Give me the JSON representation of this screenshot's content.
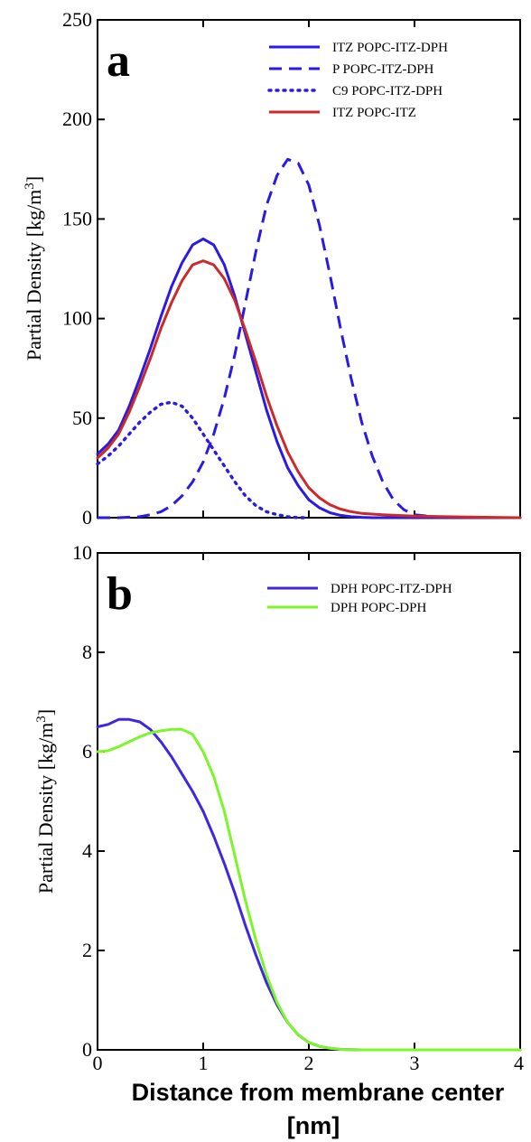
{
  "chart_data": [
    {
      "type": "line",
      "panel_label": "a",
      "ylabel_main": "Partial Density [kg/m",
      "ylabel_sup": "3",
      "ylabel_close": "]",
      "xlim": [
        0,
        4
      ],
      "ylim": [
        0,
        250
      ],
      "xticks": [
        0,
        1,
        2,
        3,
        4
      ],
      "yticks": [
        0,
        50,
        100,
        150,
        200,
        250
      ],
      "grid": false,
      "legend_position": "top-right",
      "series": [
        {
          "name": "ITZ POPC-ITZ-DPH",
          "color": "#2b1be0",
          "dash": "solid",
          "x": [
            0,
            0.1,
            0.2,
            0.3,
            0.4,
            0.5,
            0.6,
            0.7,
            0.8,
            0.9,
            1.0,
            1.1,
            1.2,
            1.3,
            1.4,
            1.5,
            1.6,
            1.7,
            1.8,
            1.9,
            2.0,
            2.1,
            2.2,
            2.3,
            2.4,
            2.5,
            2.6,
            2.8,
            3.0,
            3.5,
            4.0
          ],
          "y": [
            32,
            37,
            44,
            56,
            70,
            85,
            101,
            116,
            128,
            137,
            140,
            137,
            127,
            111,
            92,
            73,
            54,
            38,
            25,
            16,
            9,
            5,
            2.5,
            1.2,
            0.5,
            0.2,
            0,
            0,
            0,
            0,
            0
          ]
        },
        {
          "name": "P POPC-ITZ-DPH",
          "color": "#2b1be0",
          "dash": "dashed",
          "x": [
            0,
            0.2,
            0.4,
            0.5,
            0.6,
            0.7,
            0.8,
            0.9,
            1.0,
            1.1,
            1.2,
            1.3,
            1.4,
            1.5,
            1.6,
            1.7,
            1.8,
            1.9,
            2.0,
            2.1,
            2.2,
            2.3,
            2.4,
            2.5,
            2.6,
            2.7,
            2.8,
            2.9,
            3.0,
            3.2,
            3.5,
            4.0
          ],
          "y": [
            0,
            0,
            0.5,
            1.5,
            3,
            6,
            11,
            18,
            28,
            42,
            60,
            82,
            108,
            134,
            157,
            172,
            180,
            178,
            167,
            147,
            122,
            95,
            70,
            48,
            31,
            18,
            9,
            4,
            1.5,
            0.3,
            0,
            0
          ]
        },
        {
          "name": "C9 POPC-ITZ-DPH",
          "color": "#2b1be0",
          "dash": "dotted",
          "x": [
            0,
            0.1,
            0.2,
            0.3,
            0.4,
            0.5,
            0.6,
            0.7,
            0.8,
            0.9,
            1.0,
            1.1,
            1.2,
            1.3,
            1.4,
            1.5,
            1.6,
            1.7,
            1.8,
            1.9,
            2.0
          ],
          "y": [
            27,
            31,
            36,
            42,
            48,
            53,
            57,
            58,
            56,
            50,
            42,
            34,
            26,
            18,
            11,
            6,
            3,
            1.5,
            0.5,
            0,
            0
          ]
        },
        {
          "name": "ITZ POPC-ITZ",
          "color": "#cc2a2a",
          "dash": "solid",
          "x": [
            0,
            0.1,
            0.2,
            0.3,
            0.4,
            0.5,
            0.6,
            0.7,
            0.8,
            0.9,
            1.0,
            1.1,
            1.2,
            1.3,
            1.4,
            1.5,
            1.6,
            1.7,
            1.8,
            1.9,
            2.0,
            2.1,
            2.2,
            2.3,
            2.4,
            2.5,
            2.7,
            3.0,
            3.5,
            4.0
          ],
          "y": [
            30,
            35,
            42,
            53,
            66,
            80,
            95,
            108,
            119,
            127,
            129,
            127,
            120,
            109,
            94,
            78,
            61,
            46,
            33,
            23,
            15,
            10,
            6.5,
            4.3,
            3,
            2.2,
            1.5,
            0.8,
            0.3,
            0
          ]
        }
      ]
    },
    {
      "type": "line",
      "panel_label": "b",
      "ylabel_main": "Partial Density [kg/m",
      "ylabel_sup": "3",
      "ylabel_close": "]",
      "xlabel": "Distance from membrane center",
      "xlabel_line2": "[nm]",
      "xlim": [
        0,
        4
      ],
      "ylim": [
        0,
        10
      ],
      "xticks": [
        0,
        1,
        2,
        3,
        4
      ],
      "yticks": [
        0,
        2,
        4,
        6,
        8,
        10
      ],
      "grid": false,
      "legend_position": "top-right",
      "series": [
        {
          "name": "DPH POPC-ITZ-DPH",
          "color": "#3d28e0",
          "dash": "solid",
          "x": [
            0,
            0.1,
            0.2,
            0.3,
            0.4,
            0.5,
            0.6,
            0.7,
            0.8,
            0.9,
            1.0,
            1.1,
            1.2,
            1.3,
            1.4,
            1.5,
            1.6,
            1.7,
            1.8,
            1.9,
            2.0,
            2.1,
            2.2,
            2.3,
            2.5,
            3.0,
            3.5,
            4.0
          ],
          "y": [
            6.5,
            6.55,
            6.65,
            6.65,
            6.6,
            6.45,
            6.2,
            5.9,
            5.55,
            5.2,
            4.8,
            4.3,
            3.75,
            3.15,
            2.5,
            1.9,
            1.35,
            0.9,
            0.55,
            0.3,
            0.15,
            0.07,
            0.03,
            0.01,
            0,
            0,
            0,
            0
          ]
        },
        {
          "name": "DPH POPC-DPH",
          "color": "#7cf52a",
          "dash": "solid",
          "x": [
            0,
            0.1,
            0.2,
            0.3,
            0.4,
            0.5,
            0.6,
            0.7,
            0.8,
            0.9,
            1.0,
            1.1,
            1.2,
            1.3,
            1.4,
            1.5,
            1.6,
            1.7,
            1.8,
            1.9,
            2.0,
            2.1,
            2.2,
            2.3,
            2.5,
            3.0,
            3.5,
            4.0
          ],
          "y": [
            6.0,
            6.02,
            6.1,
            6.2,
            6.3,
            6.38,
            6.42,
            6.45,
            6.45,
            6.35,
            6.0,
            5.5,
            4.8,
            3.9,
            3.0,
            2.2,
            1.5,
            0.95,
            0.55,
            0.3,
            0.15,
            0.07,
            0.03,
            0.01,
            0,
            0,
            0,
            0
          ]
        }
      ]
    }
  ]
}
